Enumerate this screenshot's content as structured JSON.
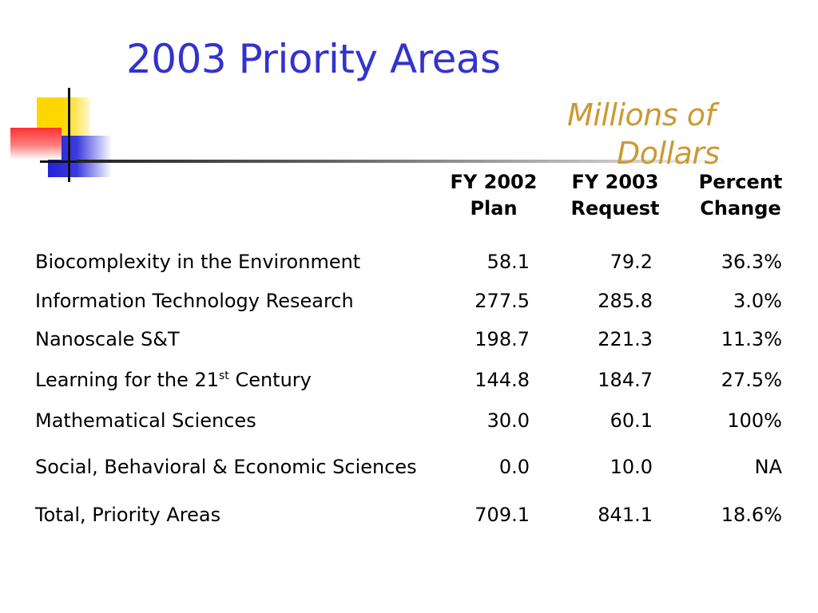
{
  "slide": {
    "title": "2003 Priority Areas",
    "subtitle_line1": "Millions of",
    "subtitle_line2": "Dollars"
  },
  "table": {
    "headers": [
      {
        "line1": "FY 2002",
        "line2": "Plan"
      },
      {
        "line1": "FY 2003",
        "line2": "Request"
      },
      {
        "line1": "Percent",
        "line2": "Change"
      }
    ],
    "rows": [
      {
        "name": "Biocomplexity in the Environment",
        "fy2002": "58.1",
        "fy2003": "79.2",
        "change": "36.3%"
      },
      {
        "name": "Information Technology Research",
        "fy2002": "277.5",
        "fy2003": "285.8",
        "change": "3.0%"
      },
      {
        "name": "Nanoscale S&T",
        "fy2002": "198.7",
        "fy2003": "221.3",
        "change": "11.3%"
      },
      {
        "name_prefix": "Learning for the 21",
        "name_sup": "st",
        "name_suffix": " Century",
        "fy2002": "144.8",
        "fy2003": "184.7",
        "change": "27.5%"
      },
      {
        "name": "Mathematical Sciences",
        "fy2002": "30.0",
        "fy2003": "60.1",
        "change": "100%"
      },
      {
        "name": "Social, Behavioral & Economic Sciences",
        "fy2002": "0.0",
        "fy2003": "10.0",
        "change": "NA"
      },
      {
        "name": "Total, Priority Areas",
        "fy2002": "709.1",
        "fy2003": "841.1",
        "change": "18.6%"
      }
    ]
  },
  "colors": {
    "title": "#3333cc",
    "subtitle": "#cc9933",
    "logo_yellow": "#ffd700",
    "logo_blue": "#2323d8",
    "logo_red": "#ff3030"
  },
  "icons": {
    "logo": "slide-logo-squares-icon"
  }
}
